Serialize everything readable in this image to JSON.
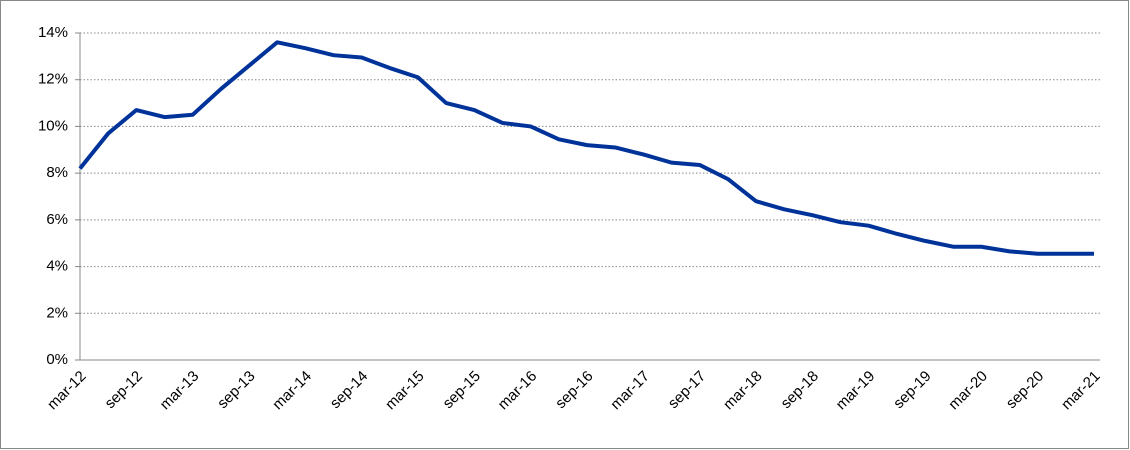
{
  "chart_data": {
    "type": "line",
    "categories": [
      "mar-12",
      null,
      "sep-12",
      null,
      "mar-13",
      null,
      "sep-13",
      null,
      "mar-14",
      null,
      "sep-14",
      null,
      "mar-15",
      null,
      "sep-15",
      null,
      "mar-16",
      null,
      "sep-16",
      null,
      "mar-17",
      null,
      "sep-17",
      null,
      "mar-18",
      null,
      "sep-18",
      null,
      "mar-19",
      null,
      "sep-19",
      null,
      "mar-20",
      null,
      "sep-20",
      null,
      "mar-21"
    ],
    "series": [
      {
        "color": "#003399",
        "values": [
          8.2,
          9.7,
          10.7,
          10.4,
          10.5,
          11.6,
          12.6,
          13.6,
          13.35,
          13.05,
          12.95,
          12.5,
          12.1,
          11.0,
          10.7,
          10.15,
          10.0,
          9.45,
          9.2,
          9.1,
          8.8,
          8.45,
          8.35,
          7.75,
          6.8,
          6.45,
          6.2,
          5.9,
          5.75,
          5.4,
          5.1,
          4.85,
          4.85,
          4.65,
          4.55,
          4.55,
          4.55
        ]
      }
    ],
    "ylim": [
      0,
      14
    ],
    "yticks": [
      {
        "value": 0,
        "label": "0%"
      },
      {
        "value": 2,
        "label": "2%"
      },
      {
        "value": 4,
        "label": "4%"
      },
      {
        "value": 6,
        "label": "6%"
      },
      {
        "value": 8,
        "label": "8%"
      },
      {
        "value": 10,
        "label": "10%"
      },
      {
        "value": 12,
        "label": "12%"
      },
      {
        "value": 14,
        "label": "14%"
      }
    ],
    "grid": true
  }
}
